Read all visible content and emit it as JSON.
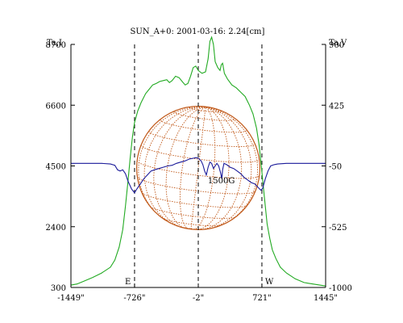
{
  "chart_data": {
    "type": "line",
    "title": "SUN_A+0: 2001-03-16: 2.24[cm]",
    "left_axis_label": "Ta,I",
    "right_axis_label": "Ta,V",
    "x_tick_labels": [
      "-1449\"",
      "-726\"",
      "-2\"",
      "721\"",
      "1445\""
    ],
    "x_tick_values": [
      -1449,
      -726,
      -2,
      721,
      1445
    ],
    "xlim": [
      -1449,
      1445
    ],
    "left_ticks": [
      300,
      2400,
      4500,
      6600,
      8700
    ],
    "left_ylim": [
      300,
      8700
    ],
    "right_ticks": [
      -1000,
      -525,
      -50,
      425,
      900
    ],
    "right_ylim": [
      -1000,
      900
    ],
    "limb_markers": [
      {
        "label": "E",
        "x": -726
      },
      {
        "label": "",
        "x": -2
      },
      {
        "label": "W",
        "x": 721
      }
    ],
    "annotation": {
      "text": "1500G",
      "x": 290,
      "y_left": 3900
    },
    "disk": {
      "center_x": -2,
      "radius_arcsec": 700
    },
    "colors": {
      "intensity": "#22aa22",
      "polarization": "#1a1a99",
      "grid": "#c05818",
      "axes": "#000000"
    },
    "series": [
      {
        "name": "I",
        "axis": "left",
        "points": [
          [
            -1449,
            380
          ],
          [
            -1380,
            420
          ],
          [
            -1300,
            520
          ],
          [
            -1200,
            650
          ],
          [
            -1100,
            800
          ],
          [
            -1000,
            1000
          ],
          [
            -950,
            1250
          ],
          [
            -900,
            1700
          ],
          [
            -860,
            2300
          ],
          [
            -830,
            3100
          ],
          [
            -800,
            4000
          ],
          [
            -775,
            4800
          ],
          [
            -750,
            5500
          ],
          [
            -726,
            6000
          ],
          [
            -690,
            6400
          ],
          [
            -650,
            6700
          ],
          [
            -600,
            7000
          ],
          [
            -560,
            7150
          ],
          [
            -520,
            7300
          ],
          [
            -480,
            7350
          ],
          [
            -440,
            7420
          ],
          [
            -400,
            7450
          ],
          [
            -360,
            7480
          ],
          [
            -330,
            7380
          ],
          [
            -300,
            7450
          ],
          [
            -260,
            7600
          ],
          [
            -220,
            7550
          ],
          [
            -180,
            7400
          ],
          [
            -150,
            7300
          ],
          [
            -120,
            7350
          ],
          [
            -90,
            7600
          ],
          [
            -60,
            7900
          ],
          [
            -30,
            7950
          ],
          [
            -2,
            7800
          ],
          [
            40,
            7700
          ],
          [
            80,
            7750
          ],
          [
            110,
            8200
          ],
          [
            130,
            8800
          ],
          [
            150,
            8950
          ],
          [
            170,
            8700
          ],
          [
            190,
            8100
          ],
          [
            220,
            7900
          ],
          [
            245,
            7800
          ],
          [
            260,
            8000
          ],
          [
            275,
            8050
          ],
          [
            295,
            7700
          ],
          [
            330,
            7500
          ],
          [
            380,
            7300
          ],
          [
            430,
            7200
          ],
          [
            480,
            7050
          ],
          [
            530,
            6900
          ],
          [
            580,
            6600
          ],
          [
            620,
            6300
          ],
          [
            660,
            5800
          ],
          [
            690,
            5200
          ],
          [
            721,
            4300
          ],
          [
            750,
            3400
          ],
          [
            780,
            2500
          ],
          [
            810,
            2000
          ],
          [
            840,
            1600
          ],
          [
            880,
            1300
          ],
          [
            930,
            1000
          ],
          [
            1000,
            800
          ],
          [
            1100,
            600
          ],
          [
            1200,
            470
          ],
          [
            1300,
            420
          ],
          [
            1380,
            380
          ],
          [
            1445,
            350
          ]
        ]
      },
      {
        "name": "V",
        "axis": "right",
        "points": [
          [
            -1449,
            -30
          ],
          [
            -1300,
            -30
          ],
          [
            -1100,
            -30
          ],
          [
            -1000,
            -35
          ],
          [
            -950,
            -45
          ],
          [
            -920,
            -80
          ],
          [
            -890,
            -90
          ],
          [
            -860,
            -80
          ],
          [
            -830,
            -110
          ],
          [
            -800,
            -170
          ],
          [
            -760,
            -230
          ],
          [
            -726,
            -260
          ],
          [
            -700,
            -230
          ],
          [
            -660,
            -190
          ],
          [
            -620,
            -150
          ],
          [
            -580,
            -120
          ],
          [
            -540,
            -90
          ],
          [
            -500,
            -80
          ],
          [
            -450,
            -70
          ],
          [
            -400,
            -60
          ],
          [
            -350,
            -50
          ],
          [
            -300,
            -45
          ],
          [
            -250,
            -30
          ],
          [
            -200,
            -20
          ],
          [
            -150,
            -10
          ],
          [
            -100,
            5
          ],
          [
            -60,
            10
          ],
          [
            -30,
            15
          ],
          [
            -2,
            10
          ],
          [
            30,
            -10
          ],
          [
            50,
            -40
          ],
          [
            70,
            -90
          ],
          [
            90,
            -120
          ],
          [
            110,
            -60
          ],
          [
            130,
            -20
          ],
          [
            150,
            -30
          ],
          [
            170,
            -70
          ],
          [
            190,
            -50
          ],
          [
            210,
            -30
          ],
          [
            230,
            -50
          ],
          [
            250,
            -100
          ],
          [
            265,
            -150
          ],
          [
            275,
            -80
          ],
          [
            290,
            -30
          ],
          [
            320,
            -40
          ],
          [
            360,
            -60
          ],
          [
            400,
            -70
          ],
          [
            440,
            -90
          ],
          [
            480,
            -110
          ],
          [
            520,
            -140
          ],
          [
            560,
            -160
          ],
          [
            600,
            -180
          ],
          [
            640,
            -190
          ],
          [
            680,
            -220
          ],
          [
            710,
            -240
          ],
          [
            730,
            -225
          ],
          [
            760,
            -150
          ],
          [
            790,
            -90
          ],
          [
            820,
            -50
          ],
          [
            860,
            -40
          ],
          [
            900,
            -35
          ],
          [
            1000,
            -30
          ],
          [
            1200,
            -30
          ],
          [
            1445,
            -30
          ]
        ]
      }
    ]
  }
}
